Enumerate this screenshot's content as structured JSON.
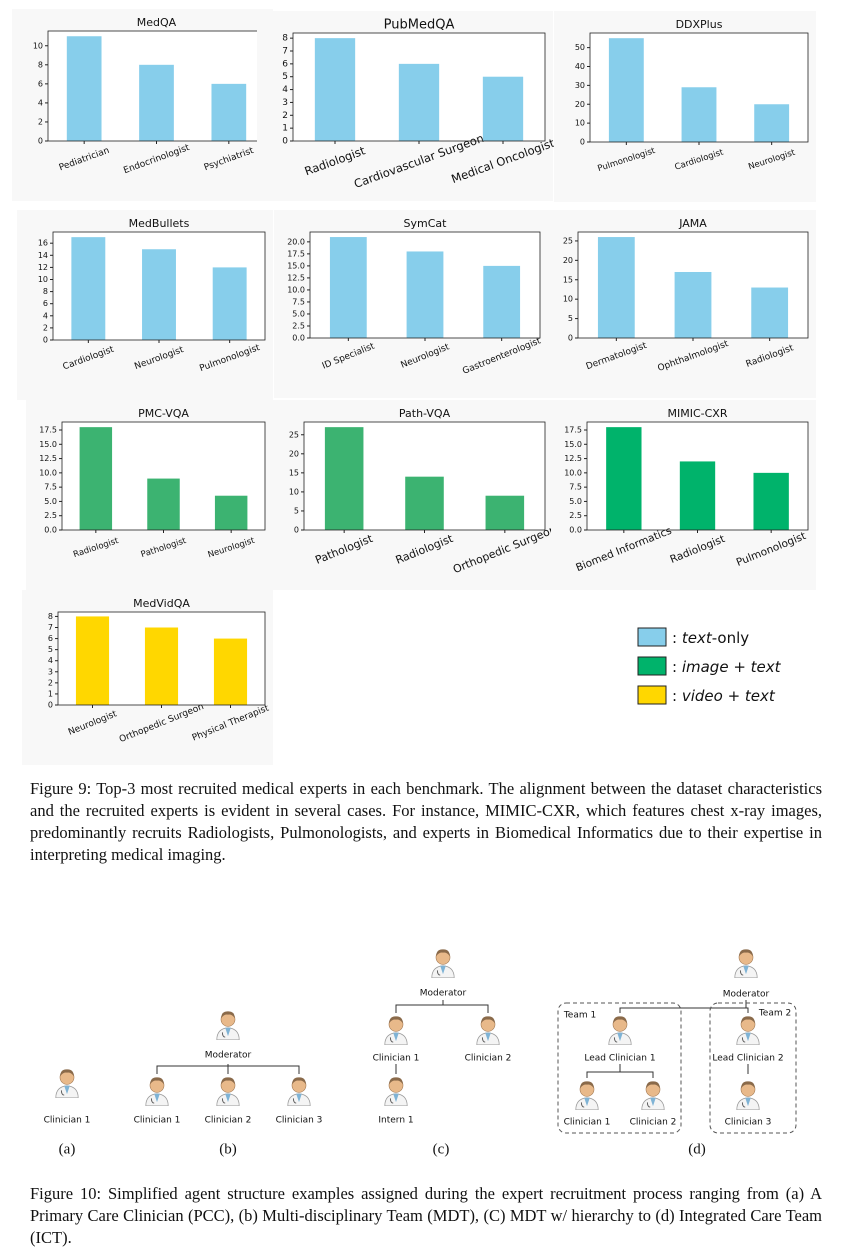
{
  "chart_data": [
    {
      "type": "bar",
      "title": "MedQA",
      "categories": [
        "Pediatrician",
        "Endocrinologist",
        "Psychiatrist"
      ],
      "values": [
        11,
        8,
        6
      ],
      "color": "#87ceeb",
      "ylim": [
        0,
        11.55
      ],
      "yticks": [
        0,
        2,
        4,
        6,
        8,
        10
      ]
    },
    {
      "type": "bar",
      "title": "PubMedQA",
      "categories": [
        "Radiologist",
        "Cardiovascular Surgeon",
        "Medical Oncologist"
      ],
      "values": [
        8,
        6,
        5
      ],
      "color": "#87ceeb",
      "ylim": [
        0,
        8.4
      ],
      "yticks": [
        0,
        1,
        2,
        3,
        4,
        5,
        6,
        7,
        8
      ]
    },
    {
      "type": "bar",
      "title": "DDXPlus",
      "categories": [
        "Pulmonologist",
        "Cardiologist",
        "Neurologist"
      ],
      "values": [
        55,
        29,
        20
      ],
      "color": "#87ceeb",
      "ylim": [
        0,
        57.75
      ],
      "yticks": [
        0,
        10,
        20,
        30,
        40,
        50
      ]
    },
    {
      "type": "bar",
      "title": "MedBullets",
      "categories": [
        "Cardiologist",
        "Neurologist",
        "Pulmonologist"
      ],
      "values": [
        17,
        15,
        12
      ],
      "color": "#87ceeb",
      "ylim": [
        0,
        17.85
      ],
      "yticks": [
        0,
        2,
        4,
        6,
        8,
        10,
        12,
        14,
        16
      ]
    },
    {
      "type": "bar",
      "title": "SymCat",
      "categories": [
        "ID Specialist",
        "Neurologist",
        "Gastroenterologist"
      ],
      "values": [
        21,
        18,
        15
      ],
      "color": "#87ceeb",
      "ylim": [
        0,
        22.05
      ],
      "yticks": [
        {
          "value": 0,
          "label": "0.0"
        },
        2.5,
        {
          "value": 5,
          "label": "5.0"
        },
        7.5,
        {
          "value": 10,
          "label": "10.0"
        },
        12.5,
        {
          "value": 15,
          "label": "15.0"
        },
        17.5,
        {
          "value": 20,
          "label": "20.0"
        }
      ]
    },
    {
      "type": "bar",
      "title": "JAMA",
      "categories": [
        "Dermatologist",
        "Ophthalmologist",
        "Radiologist"
      ],
      "values": [
        26,
        17,
        13
      ],
      "color": "#87ceeb",
      "ylim": [
        0,
        27.3
      ],
      "yticks": [
        0,
        5,
        10,
        15,
        20,
        25
      ]
    },
    {
      "type": "bar",
      "title": "PMC-VQA",
      "categories": [
        "Radiologist",
        "Pathologist",
        "Neurologist"
      ],
      "values": [
        18,
        9,
        6
      ],
      "color": "#3cb371",
      "ylim": [
        0,
        18.9
      ],
      "yticks": [
        {
          "value": 0,
          "label": "0.0"
        },
        2.5,
        {
          "value": 5,
          "label": "5.0"
        },
        7.5,
        {
          "value": 10,
          "label": "10.0"
        },
        12.5,
        {
          "value": 15,
          "label": "15.0"
        },
        17.5
      ]
    },
    {
      "type": "bar",
      "title": "Path-VQA",
      "categories": [
        "Pathologist",
        "Radiologist",
        "Orthopedic Surgeon"
      ],
      "values": [
        27,
        14,
        9
      ],
      "color": "#3cb371",
      "ylim": [
        0,
        28.35
      ],
      "yticks": [
        0,
        5,
        10,
        15,
        20,
        25
      ]
    },
    {
      "type": "bar",
      "title": "MIMIC-CXR",
      "categories": [
        "Biomed Informatics",
        "Radiologist",
        "Pulmonologist"
      ],
      "values": [
        18,
        12,
        10
      ],
      "color": "#00b36b",
      "ylim": [
        0,
        18.9
      ],
      "yticks": [
        {
          "value": 0,
          "label": "0.0"
        },
        2.5,
        {
          "value": 5,
          "label": "5.0"
        },
        7.5,
        {
          "value": 10,
          "label": "10.0"
        },
        12.5,
        {
          "value": 15,
          "label": "15.0"
        },
        17.5
      ]
    },
    {
      "type": "bar",
      "title": "MedVidQA",
      "categories": [
        "Neurologist",
        "Orthopedic Surgeon",
        "Physical Therapist"
      ],
      "values": [
        8,
        7,
        6
      ],
      "color": "#ffd700",
      "ylim": [
        0,
        8.4
      ],
      "yticks": [
        0,
        1,
        2,
        3,
        4,
        5,
        6,
        7,
        8
      ]
    }
  ],
  "legend": [
    {
      "color": "#87ceeb",
      "label": [
        ": ",
        "text",
        "-only"
      ]
    },
    {
      "color": "#00b36b",
      "label": [
        ": ",
        "image + text"
      ]
    },
    {
      "color": "#ffd700",
      "label": [
        ": ",
        "video + text"
      ]
    }
  ],
  "figure9_caption": "Figure 9: Top-3 most recruited medical experts in each benchmark. The alignment between the dataset characteristics and the recruited experts is evident in several cases. For instance, MIMIC-CXR, which features chest x-ray images, predominantly recruits Radiologists, Pulmonologists, and experts in Biomedical Informatics due to their expertise in interpreting medical imaging.",
  "figure10": {
    "panels": [
      {
        "label": "(a)",
        "nodes": [
          "Clinician 1"
        ]
      },
      {
        "label": "(b)",
        "nodes": [
          "Moderator",
          "Clinician 1",
          "Clinician 2",
          "Clinician 3"
        ]
      },
      {
        "label": "(c)",
        "nodes": [
          "Moderator",
          "Clinician 1",
          "Clinician 2",
          "Intern 1"
        ]
      },
      {
        "label": "(d)",
        "teams": [
          "Team 1",
          "Team 2"
        ],
        "nodes": [
          "Moderator",
          "Lead Clinician 1",
          "Clinician 1",
          "Clinician 2",
          "Lead Clinician 2",
          "Clinician 3"
        ]
      }
    ],
    "caption": "Figure 10: Simplified agent structure examples assigned during the expert recruitment process ranging from (a) A Primary Care Clinician (PCC), (b) Multi-disciplinary Team (MDT), (C) MDT w/ hierarchy to (d) Integrated Care Team (ICT)."
  }
}
